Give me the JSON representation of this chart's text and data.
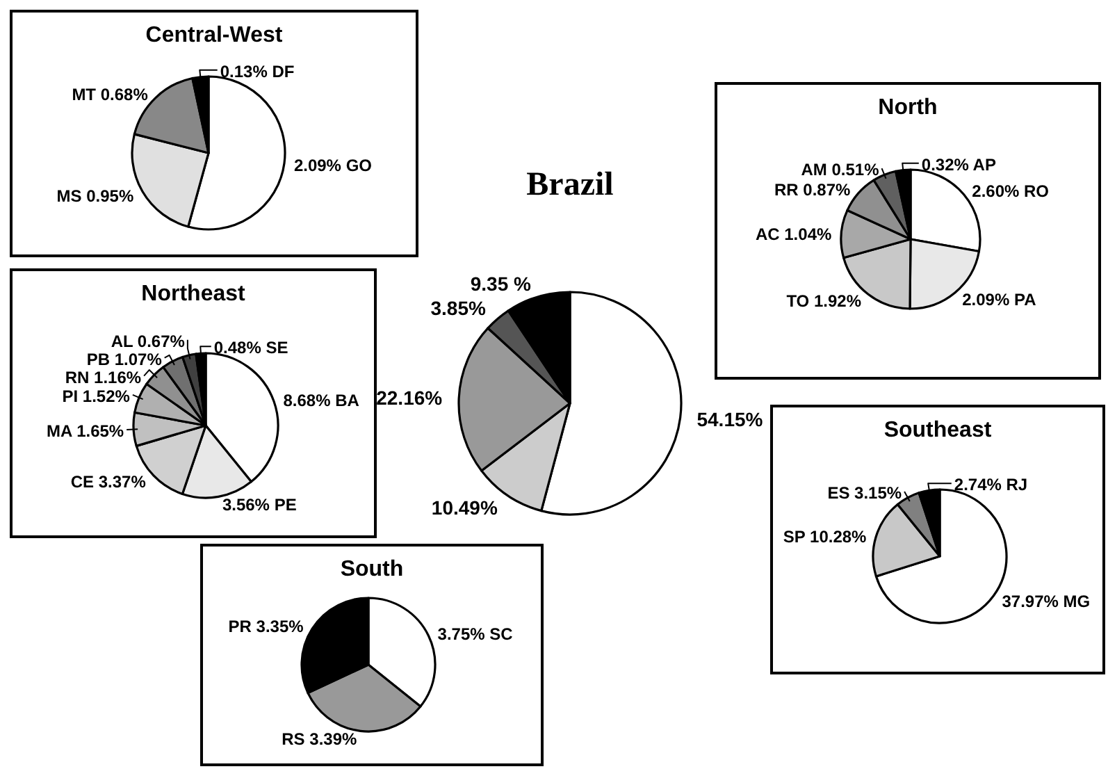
{
  "chart_data": [
    {
      "type": "pie",
      "title": "Brazil",
      "categories": [
        null,
        null,
        null,
        null,
        null
      ],
      "values": [
        54.15,
        10.49,
        22.16,
        3.85,
        9.35
      ],
      "colors": [
        "#ffffff",
        "#cccccc",
        "#999999",
        "#555555",
        "#000000"
      ],
      "value_labels": [
        "54.15%",
        "10.49%",
        "22.16%",
        "3.85%",
        "9.35 %"
      ]
    },
    {
      "type": "pie",
      "title": "Central-West",
      "categories": [
        "GO",
        "MS",
        "MT",
        "DF"
      ],
      "values": [
        2.09,
        0.95,
        0.68,
        0.13
      ],
      "colors": [
        "#ffffff",
        "#e0e0e0",
        "#888888",
        "#000000"
      ],
      "value_labels": [
        "2.09%",
        "0.95%",
        "0.68%",
        "0.13%"
      ]
    },
    {
      "type": "pie",
      "title": "Northeast",
      "categories": [
        "BA",
        "PE",
        "CE",
        "MA",
        "PI",
        "RN",
        "PB",
        "AL",
        "SE"
      ],
      "values": [
        8.68,
        3.56,
        3.37,
        1.65,
        1.52,
        1.16,
        1.07,
        0.67,
        0.48
      ],
      "colors": [
        "#ffffff",
        "#e8e8e8",
        "#d0d0d0",
        "#c0c0c0",
        "#b0b0b0",
        "#909090",
        "#707070",
        "#404040",
        "#000000"
      ],
      "value_labels": [
        "8.68%",
        "3.56%",
        "3.37%",
        "1.65%",
        "1.52%",
        "1.16%",
        "1.07%",
        "0.67%",
        "0.48%"
      ]
    },
    {
      "type": "pie",
      "title": "North",
      "categories": [
        "RO",
        "PA",
        "TO",
        "AC",
        "RR",
        "AM",
        "AP"
      ],
      "values": [
        2.6,
        2.09,
        1.92,
        1.04,
        0.87,
        0.51,
        0.32
      ],
      "colors": [
        "#ffffff",
        "#e8e8e8",
        "#c8c8c8",
        "#a8a8a8",
        "#909090",
        "#606060",
        "#000000"
      ],
      "value_labels": [
        "2.60%",
        "2.09%",
        "1.92%",
        "1.04%",
        "0.87%",
        "0.51%",
        "0.32%"
      ]
    },
    {
      "type": "pie",
      "title": "Southeast",
      "categories": [
        "MG",
        "SP",
        "ES",
        "RJ"
      ],
      "values": [
        37.97,
        10.28,
        3.15,
        2.74
      ],
      "colors": [
        "#ffffff",
        "#c8c8c8",
        "#808080",
        "#000000"
      ],
      "value_labels": [
        "37.97%",
        "10.28%",
        "3.15%",
        "2.74%"
      ]
    },
    {
      "type": "pie",
      "title": "South",
      "categories": [
        "SC",
        "RS",
        "PR"
      ],
      "values": [
        3.75,
        3.39,
        3.35
      ],
      "colors": [
        "#ffffff",
        "#999999",
        "#000000"
      ],
      "value_labels": [
        "3.75%",
        "3.39%",
        "3.35%"
      ]
    }
  ]
}
